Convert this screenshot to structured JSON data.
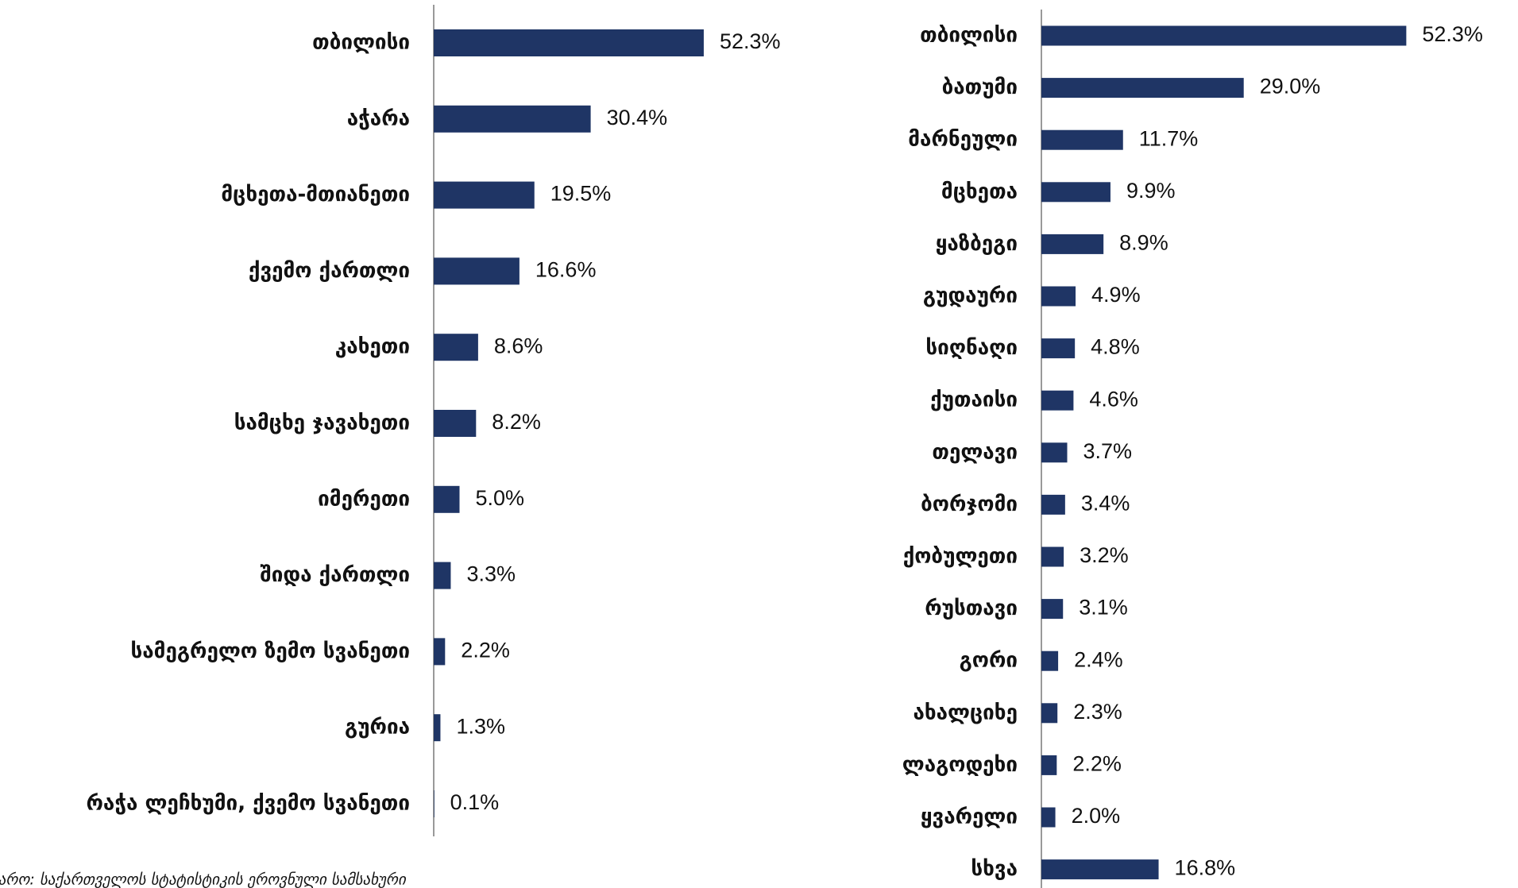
{
  "chart_data": [
    {
      "type": "bar",
      "orientation": "horizontal",
      "color": "#1f3565",
      "xlim": [
        0,
        60
      ],
      "categories": [
        "თბილისი",
        "აჭარა",
        "მცხეთა-მთიანეთი",
        "ქვემო ქართლი",
        "კახეთი",
        "სამცხე ჯავახეთი",
        "იმერეთი",
        "შიდა ქართლი",
        "სამეგრელო ზემო სვანეთი",
        "გურია",
        "რაჭა ლეჩხუმი, ქვემო სვანეთი"
      ],
      "values": [
        52.3,
        30.4,
        19.5,
        16.6,
        8.6,
        8.2,
        5.0,
        3.3,
        2.2,
        1.3,
        0.1
      ],
      "value_labels": [
        "52.3%",
        "30.4%",
        "19.5%",
        "16.6%",
        "8.6%",
        "8.2%",
        "5.0%",
        "3.3%",
        "2.2%",
        "1.3%",
        "0.1%"
      ]
    },
    {
      "type": "bar",
      "orientation": "horizontal",
      "color": "#1f3565",
      "xlim": [
        0,
        60
      ],
      "categories": [
        "თბილისი",
        "ბათუმი",
        "მარნეული",
        "მცხეთა",
        "ყაზბეგი",
        "გუდაური",
        "სიღნაღი",
        "ქუთაისი",
        "თელავი",
        "ბორჯომი",
        "ქობულეთი",
        "რუსთავი",
        "გორი",
        "ახალციხე",
        "ლაგოდეხი",
        "ყვარელი",
        "სხვა"
      ],
      "values": [
        52.3,
        29.0,
        11.7,
        9.9,
        8.9,
        4.9,
        4.8,
        4.6,
        3.7,
        3.4,
        3.2,
        3.1,
        2.4,
        2.3,
        2.2,
        2.0,
        16.8
      ],
      "value_labels": [
        "52.3%",
        "29.0%",
        "11.7%",
        "9.9%",
        "8.9%",
        "4.9%",
        "4.8%",
        "4.6%",
        "3.7%",
        "3.4%",
        "3.2%",
        "3.1%",
        "2.4%",
        "2.3%",
        "2.2%",
        "2.0%",
        "16.8%"
      ]
    }
  ],
  "source": "წყარო: საქართველოს სტატისტიკის ეროვნული სამსახური"
}
